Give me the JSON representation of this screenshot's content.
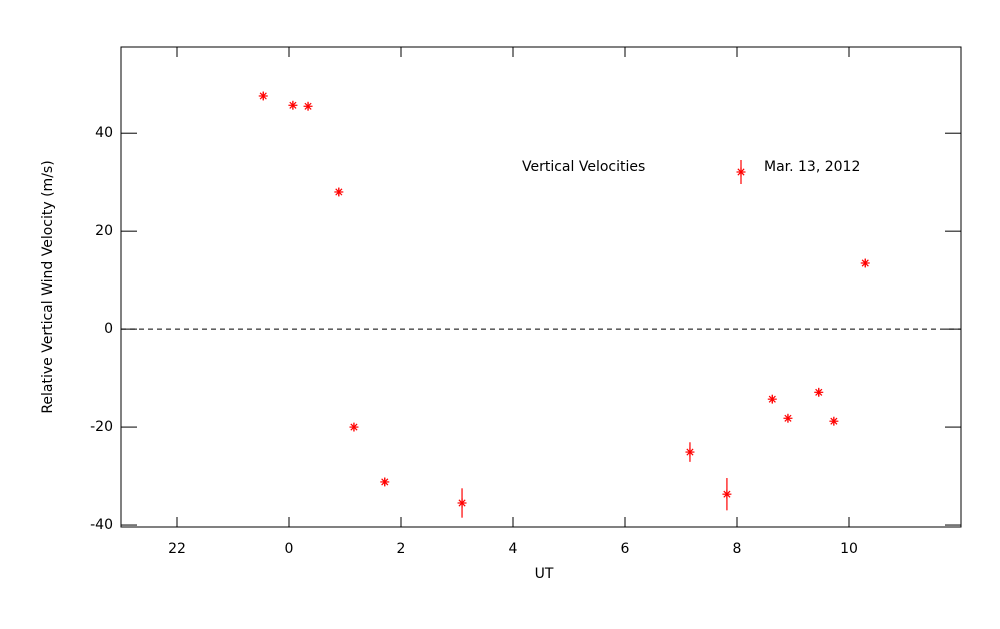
{
  "chart_data": {
    "type": "scatter",
    "annotation": "Vertical Velocities",
    "x_label": "UT",
    "y_label": "Relative Vertical Wind Velocity (m/s)",
    "xlim": [
      -3,
      12
    ],
    "ylim": [
      -40.4,
      57.6
    ],
    "xticks": [
      {
        "value": -2,
        "label": "22"
      },
      0,
      2,
      4,
      6,
      8,
      10
    ],
    "yticks": [
      -40,
      -20,
      0,
      20,
      40
    ],
    "reference_line": 0,
    "series": [
      {
        "name": "Mar. 13, 2012",
        "color": "#ff0000",
        "x": [
          -0.46,
          0.07,
          0.34,
          0.89,
          1.16,
          1.71,
          3.09,
          7.16,
          7.82,
          8.63,
          8.91,
          9.46,
          9.73,
          10.29
        ],
        "values": [
          47.6,
          45.7,
          45.5,
          28.0,
          -20.0,
          -31.2,
          -35.5,
          -25.1,
          -33.7,
          -14.3,
          -18.2,
          -12.9,
          -18.8,
          13.5
        ],
        "errors": [
          0.8,
          0.8,
          0.8,
          0.8,
          0.8,
          0.8,
          3.0,
          2.0,
          3.3,
          0.8,
          0.8,
          0.8,
          0.8,
          0.8
        ]
      }
    ]
  }
}
